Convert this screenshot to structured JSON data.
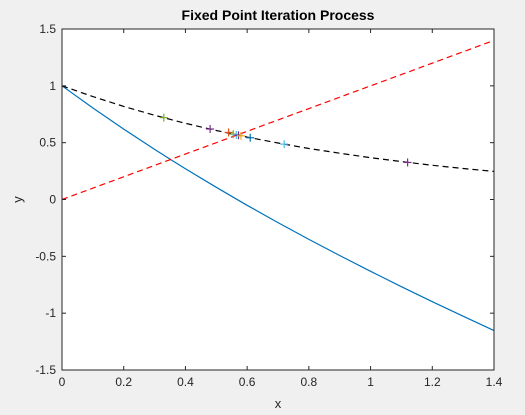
{
  "chart_data": {
    "type": "line",
    "title": "Fixed Point Iteration Process",
    "xlabel": "x",
    "ylabel": "y",
    "xlim": [
      0,
      1.4
    ],
    "ylim": [
      -1.5,
      1.5
    ],
    "xticks": [
      0,
      0.2,
      0.4,
      0.6,
      0.8,
      1,
      1.2,
      1.4
    ],
    "xtick_labels": [
      "0",
      "0.2",
      "0.4",
      "0.6",
      "0.8",
      "1",
      "1.2",
      "1.4"
    ],
    "yticks": [
      -1.5,
      -1,
      -0.5,
      0,
      0.5,
      1,
      1.5
    ],
    "ytick_labels": [
      "-1.5",
      "-1",
      "-0.5",
      "0",
      "0.5",
      "1",
      "1.5"
    ],
    "grid": false,
    "box": true,
    "series": [
      {
        "color": "#0072bd",
        "style": "solid",
        "x": [
          0,
          0.1,
          0.2,
          0.3,
          0.35,
          0.4,
          0.5,
          0.6,
          0.7,
          0.8,
          0.9,
          1.0,
          1.1,
          1.2,
          1.3,
          1.4
        ],
        "y": [
          1.0,
          0.805,
          0.619,
          0.441,
          0.355,
          0.27,
          0.107,
          -0.051,
          -0.203,
          -0.351,
          -0.493,
          -0.632,
          -0.767,
          -0.899,
          -1.027,
          -1.153
        ]
      },
      {
        "color": "#000000",
        "style": "dashed",
        "x": [
          0,
          0.1,
          0.2,
          0.3,
          0.4,
          0.5,
          0.6,
          0.7,
          0.8,
          0.9,
          1.0,
          1.1,
          1.2,
          1.3,
          1.4
        ],
        "y": [
          1.0,
          0.905,
          0.819,
          0.741,
          0.67,
          0.607,
          0.549,
          0.497,
          0.449,
          0.407,
          0.368,
          0.333,
          0.301,
          0.273,
          0.247
        ]
      },
      {
        "color": "#ff0000",
        "style": "dashed",
        "x": [
          0,
          1.4
        ],
        "y": [
          0,
          1.4
        ]
      }
    ],
    "iterates": [
      {
        "x": 0.33,
        "y": 0.72,
        "color": "#77ac30"
      },
      {
        "x": 0.48,
        "y": 0.62,
        "color": "#7e2f8e"
      },
      {
        "x": 0.54,
        "y": 0.59,
        "color": "#d95319"
      },
      {
        "x": 0.555,
        "y": 0.575,
        "color": "#77ac30"
      },
      {
        "x": 0.565,
        "y": 0.568,
        "color": "#4dbeee"
      },
      {
        "x": 0.572,
        "y": 0.565,
        "color": "#7e2f8e"
      },
      {
        "x": 0.58,
        "y": 0.56,
        "color": "#edb120"
      },
      {
        "x": 0.61,
        "y": 0.543,
        "color": "#0072bd"
      },
      {
        "x": 0.72,
        "y": 0.487,
        "color": "#4dbeee"
      },
      {
        "x": 1.12,
        "y": 0.326,
        "color": "#7e2f8e"
      }
    ]
  }
}
